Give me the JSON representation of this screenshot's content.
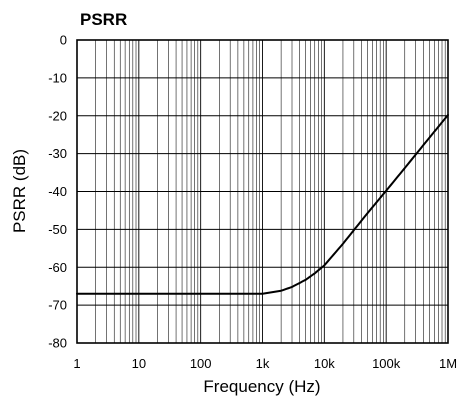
{
  "chart_data": {
    "type": "line",
    "title": "PSRR",
    "xlabel": "Frequency (Hz)",
    "ylabel": "PSRR (dB)",
    "x_scale": "log",
    "xlim": [
      1,
      1000000
    ],
    "ylim": [
      -80,
      0
    ],
    "grid": true,
    "x_ticks": [
      {
        "value": 1,
        "label": "1"
      },
      {
        "value": 10,
        "label": "10"
      },
      {
        "value": 100,
        "label": "100"
      },
      {
        "value": 1000,
        "label": "1k"
      },
      {
        "value": 10000,
        "label": "10k"
      },
      {
        "value": 100000,
        "label": "100k"
      },
      {
        "value": 1000000,
        "label": "1M"
      }
    ],
    "y_ticks": [
      {
        "value": 0,
        "label": "0"
      },
      {
        "value": -10,
        "label": "-10"
      },
      {
        "value": -20,
        "label": "-20"
      },
      {
        "value": -30,
        "label": "-30"
      },
      {
        "value": -40,
        "label": "-40"
      },
      {
        "value": -50,
        "label": "-50"
      },
      {
        "value": -60,
        "label": "-60"
      },
      {
        "value": -70,
        "label": "-70"
      },
      {
        "value": -80,
        "label": "-80"
      }
    ],
    "series": [
      {
        "color": "#000000",
        "points": [
          {
            "x": 1,
            "y": -67
          },
          {
            "x": 10,
            "y": -67
          },
          {
            "x": 100,
            "y": -67
          },
          {
            "x": 1000,
            "y": -67
          },
          {
            "x": 2000,
            "y": -66.2
          },
          {
            "x": 3000,
            "y": -65.2
          },
          {
            "x": 5000,
            "y": -63.3
          },
          {
            "x": 7000,
            "y": -61.6
          },
          {
            "x": 10000,
            "y": -59.5
          },
          {
            "x": 20000,
            "y": -53.8
          },
          {
            "x": 50000,
            "y": -45.7
          },
          {
            "x": 100000,
            "y": -39.8
          },
          {
            "x": 200000,
            "y": -33.8
          },
          {
            "x": 500000,
            "y": -25.8
          },
          {
            "x": 1000000,
            "y": -19.8
          }
        ]
      }
    ]
  }
}
